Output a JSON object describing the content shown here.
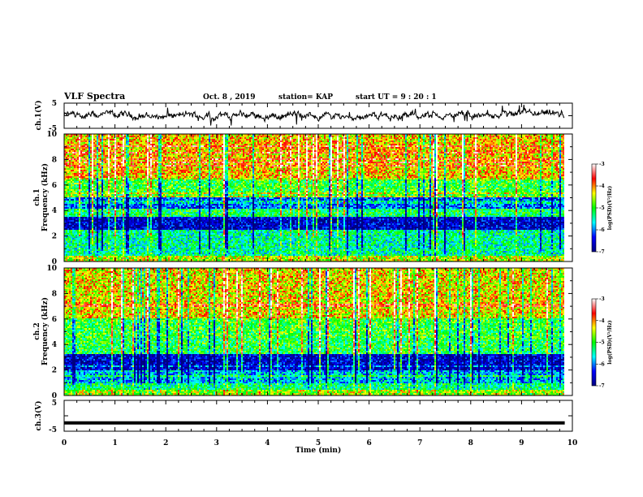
{
  "header": {
    "title": "VLF Spectra",
    "date": "Oct. 8  , 2019",
    "station": "station= KAP",
    "start": "start  UT =  9 : 20 : 1"
  },
  "chart_data": [
    {
      "type": "line",
      "panel": "ch1-waveform",
      "ylabel": "ch.1(V)",
      "ylim": [
        -5,
        5
      ],
      "yticks": [
        "5",
        "-5"
      ],
      "xlim": [
        0,
        10
      ],
      "data_extent_min": 9.85,
      "signal": "noisy waveform fluctuating roughly between -3 and 3 V",
      "color": "#000000"
    },
    {
      "type": "heatmap",
      "panel": "ch1-spectrogram",
      "ylabel": "ch.1 Frequency (kHz)",
      "ylim": [
        0,
        10
      ],
      "yticks": [
        "0",
        "2",
        "4",
        "6",
        "8",
        "10"
      ],
      "xlim": [
        0,
        10
      ],
      "data_extent_min": 9.85,
      "colorbar": {
        "label": "log(PSD)(V²/Hz)",
        "range": [
          -7,
          -3
        ],
        "ticks": [
          "-3",
          "-4",
          "-5",
          "-6",
          "-7"
        ],
        "colors": [
          "#000080",
          "#0000ff",
          "#00ffff",
          "#00ff00",
          "#ffff00",
          "#ff0000",
          "#ffffff"
        ]
      },
      "bands_khz": [
        {
          "from": 0,
          "to": 0.5,
          "level": -4.5
        },
        {
          "from": 0.5,
          "to": 2.5,
          "level": -5.4
        },
        {
          "from": 2.5,
          "to": 3.5,
          "level": -6.6
        },
        {
          "from": 3.5,
          "to": 4.2,
          "level": -5.2
        },
        {
          "from": 4.2,
          "to": 5.0,
          "level": -6.1
        },
        {
          "from": 5.0,
          "to": 6.5,
          "level": -5.0
        },
        {
          "from": 6.5,
          "to": 10,
          "level": -4.2
        }
      ]
    },
    {
      "type": "heatmap",
      "panel": "ch2-spectrogram",
      "ylabel": "ch.2 Frequency (kHz)",
      "ylim": [
        0,
        10
      ],
      "yticks": [
        "0",
        "2",
        "4",
        "6",
        "8",
        "10"
      ],
      "xlim": [
        0,
        10
      ],
      "data_extent_min": 9.85,
      "colorbar": {
        "label": "log(PSD)(V²/Hz)",
        "range": [
          -7,
          -3
        ],
        "ticks": [
          "-3",
          "-4",
          "-5",
          "-6",
          "-7"
        ],
        "colors": [
          "#000080",
          "#0000ff",
          "#00ffff",
          "#00ff00",
          "#ffff00",
          "#ff0000",
          "#ffffff"
        ]
      },
      "bands_khz": [
        {
          "from": 0,
          "to": 0.4,
          "level": -4.6
        },
        {
          "from": 0.4,
          "to": 1.0,
          "level": -5.3
        },
        {
          "from": 1.0,
          "to": 2.0,
          "level": -5.8
        },
        {
          "from": 2.0,
          "to": 3.2,
          "level": -6.6
        },
        {
          "from": 3.2,
          "to": 4.5,
          "level": -5.1
        },
        {
          "from": 4.5,
          "to": 6.0,
          "level": -5.0
        },
        {
          "from": 6.0,
          "to": 10,
          "level": -4.3
        }
      ]
    },
    {
      "type": "line",
      "panel": "ch3-waveform",
      "ylabel": "ch.3(V)",
      "ylim": [
        -5,
        5
      ],
      "yticks": [
        "5",
        "-5"
      ],
      "xlim": [
        0,
        10
      ],
      "data_extent_min": 9.85,
      "constant_value": -2.3,
      "color": "#000000"
    }
  ],
  "xaxis": {
    "label": "Time  (min)",
    "ticks": [
      "0",
      "1",
      "2",
      "3",
      "4",
      "5",
      "6",
      "7",
      "8",
      "9",
      "10"
    ]
  }
}
